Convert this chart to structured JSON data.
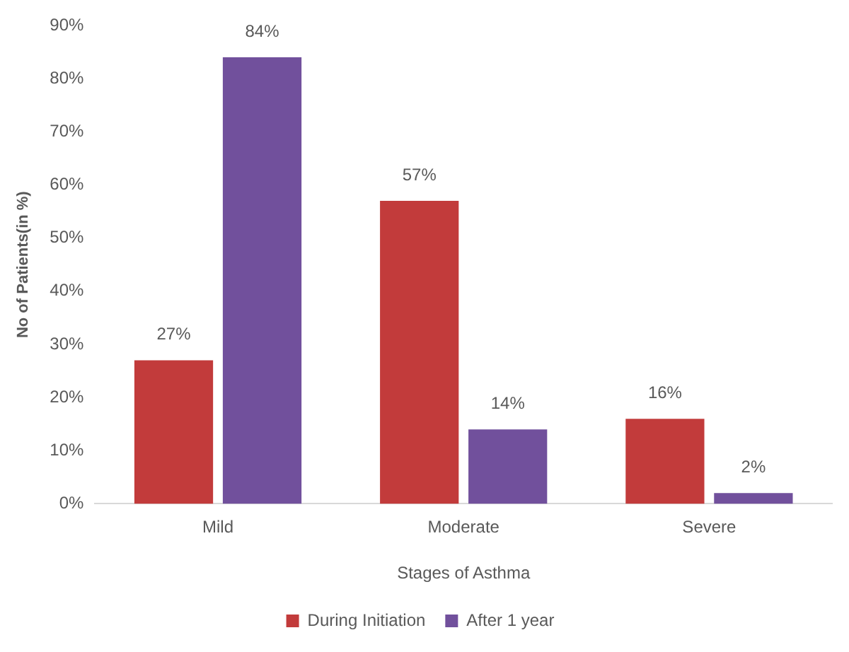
{
  "chart_data": {
    "type": "bar",
    "xlabel": "Stages of Asthma",
    "ylabel": "No of Patients(in %)",
    "categories": [
      "Mild",
      "Moderate",
      "Severe"
    ],
    "series": [
      {
        "name": "During Initiation",
        "color": "#c23b3b",
        "values": [
          27,
          57,
          16
        ],
        "value_labels": [
          "27%",
          "57%",
          "16%"
        ]
      },
      {
        "name": "After 1 year",
        "color": "#71509c",
        "values": [
          84,
          14,
          2
        ],
        "value_labels": [
          "84%",
          "14%",
          "2%"
        ]
      }
    ],
    "ylim": [
      0,
      90
    ],
    "yticks": [
      {
        "value": 0,
        "label": "0%"
      },
      {
        "value": 10,
        "label": "10%"
      },
      {
        "value": 20,
        "label": "20%"
      },
      {
        "value": 30,
        "label": "30%"
      },
      {
        "value": 40,
        "label": "40%"
      },
      {
        "value": 50,
        "label": "50%"
      },
      {
        "value": 60,
        "label": "60%"
      },
      {
        "value": 70,
        "label": "70%"
      },
      {
        "value": 80,
        "label": "80%"
      },
      {
        "value": 90,
        "label": "90%"
      }
    ],
    "grid": false,
    "legend": "bottom"
  }
}
